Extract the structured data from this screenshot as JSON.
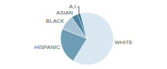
{
  "chart_data": {
    "type": "pie",
    "categories": [
      "WHITE",
      "HISPANIC",
      "BLACK",
      "ASIAN",
      "A.I."
    ],
    "values": [
      62,
      22,
      9,
      4,
      1.5
    ],
    "colors": [
      "#d9e8f0",
      "#6d9db5",
      "#a8c4d4",
      "#4a84a0",
      "#2d6e8a"
    ]
  }
}
